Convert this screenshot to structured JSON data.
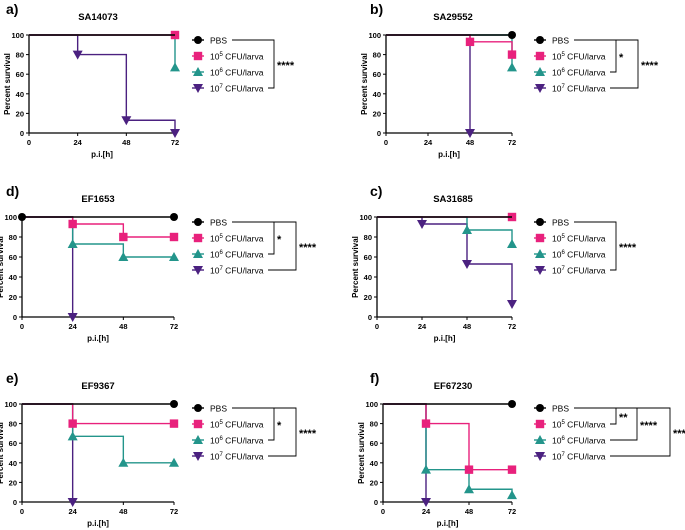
{
  "legend_labels": {
    "pbs": "PBS",
    "d5_base": "10",
    "d5_exp": "5",
    "d6_base": "10",
    "d6_exp": "6",
    "d7_base": "10",
    "d7_exp": "7",
    "unit": " CFU/larva"
  },
  "colors": {
    "PBS": "#000000",
    "1e5": "#e8217c",
    "1e6": "#23958b",
    "1e7": "#4b2180",
    "bracket": "#000000"
  },
  "markers": {
    "PBS": "circle",
    "1e5": "square",
    "1e6": "triangle-up",
    "1e7": "triangle-down"
  },
  "chart_data": [
    {
      "type": "line",
      "panel_label": "a)",
      "title": "SA14073",
      "xlabel": "p.i.[h]",
      "ylabel": "Percent survival",
      "xlim": [
        0,
        72
      ],
      "ylim": [
        0,
        100
      ],
      "xticks": [
        0,
        24,
        48,
        72
      ],
      "yticks": [
        0,
        20,
        40,
        60,
        80,
        100
      ],
      "series": [
        {
          "key": "1e7",
          "name": "10^7 CFU/larva",
          "steps": [
            [
              0,
              100
            ],
            [
              24,
              80
            ],
            [
              48,
              13
            ],
            [
              72,
              0
            ]
          ],
          "markers": [
            [
              24,
              80
            ],
            [
              48,
              13
            ],
            [
              72,
              0
            ]
          ]
        },
        {
          "key": "1e6",
          "name": "10^6 CFU/larva",
          "steps": [
            [
              0,
              100
            ],
            [
              72,
              67
            ]
          ],
          "markers": [
            [
              72,
              67
            ]
          ]
        },
        {
          "key": "1e5",
          "name": "10^5 CFU/larva",
          "steps": [
            [
              0,
              100
            ],
            [
              72,
              100
            ]
          ],
          "markers": [
            [
              72,
              100
            ]
          ]
        },
        {
          "key": "PBS",
          "name": "PBS",
          "steps": [
            [
              0,
              100
            ],
            [
              72,
              100
            ]
          ],
          "markers": []
        }
      ],
      "significance": [
        {
          "label": "****",
          "from": "PBS",
          "to": "1e7"
        }
      ]
    },
    {
      "type": "line",
      "panel_label": "b)",
      "title": "SA29552",
      "xlabel": "p.i.[h]",
      "ylabel": "Percent survival",
      "xlim": [
        0,
        72
      ],
      "ylim": [
        0,
        100
      ],
      "xticks": [
        0,
        24,
        48,
        72
      ],
      "yticks": [
        0,
        20,
        40,
        60,
        80,
        100
      ],
      "series": [
        {
          "key": "1e7",
          "name": "10^7 CFU/larva",
          "steps": [
            [
              0,
              100
            ],
            [
              48,
              0
            ]
          ],
          "markers": [
            [
              48,
              0
            ]
          ]
        },
        {
          "key": "1e6",
          "name": "10^6 CFU/larva",
          "steps": [
            [
              0,
              100
            ],
            [
              72,
              67
            ]
          ],
          "markers": [
            [
              72,
              67
            ]
          ]
        },
        {
          "key": "1e5",
          "name": "10^5 CFU/larva",
          "steps": [
            [
              0,
              100
            ],
            [
              48,
              93
            ],
            [
              72,
              80
            ]
          ],
          "markers": [
            [
              48,
              93
            ],
            [
              72,
              80
            ]
          ]
        },
        {
          "key": "PBS",
          "name": "PBS",
          "steps": [
            [
              0,
              100
            ],
            [
              72,
              100
            ]
          ],
          "markers": [
            [
              72,
              100
            ]
          ]
        }
      ],
      "significance": [
        {
          "label": "*",
          "from": "PBS",
          "to": "1e6"
        },
        {
          "label": "****",
          "from": "PBS",
          "to": "1e7"
        }
      ]
    },
    {
      "type": "line",
      "panel_label": "d)",
      "title": "EF1653",
      "xlabel": "p.i.[h]",
      "ylabel": "Percent survival",
      "xlim": [
        0,
        72
      ],
      "ylim": [
        0,
        100
      ],
      "xticks": [
        0,
        24,
        48,
        72
      ],
      "yticks": [
        0,
        20,
        40,
        60,
        80,
        100
      ],
      "series": [
        {
          "key": "1e7",
          "name": "10^7 CFU/larva",
          "steps": [
            [
              0,
              100
            ],
            [
              24,
              0
            ]
          ],
          "markers": [
            [
              24,
              0
            ]
          ]
        },
        {
          "key": "1e6",
          "name": "10^6 CFU/larva",
          "steps": [
            [
              0,
              100
            ],
            [
              24,
              73
            ],
            [
              48,
              60
            ],
            [
              72,
              60
            ]
          ],
          "markers": [
            [
              24,
              73
            ],
            [
              48,
              60
            ],
            [
              72,
              60
            ]
          ]
        },
        {
          "key": "1e5",
          "name": "10^5 CFU/larva",
          "steps": [
            [
              0,
              100
            ],
            [
              24,
              93
            ],
            [
              48,
              80
            ],
            [
              72,
              80
            ]
          ],
          "markers": [
            [
              24,
              93
            ],
            [
              48,
              80
            ],
            [
              72,
              80
            ]
          ]
        },
        {
          "key": "PBS",
          "name": "PBS",
          "steps": [
            [
              0,
              100
            ],
            [
              72,
              100
            ]
          ],
          "markers": [
            [
              0,
              100
            ],
            [
              72,
              100
            ]
          ]
        }
      ],
      "significance": [
        {
          "label": "*",
          "from": "PBS",
          "to": "1e6"
        },
        {
          "label": "****",
          "from": "PBS",
          "to": "1e7"
        }
      ]
    },
    {
      "type": "line",
      "panel_label": "c)",
      "title": "SA31685",
      "xlabel": "p.i.[h]",
      "ylabel": "Percent survival",
      "xlim": [
        0,
        72
      ],
      "ylim": [
        0,
        100
      ],
      "xticks": [
        0,
        24,
        48,
        72
      ],
      "yticks": [
        0,
        20,
        40,
        60,
        80,
        100
      ],
      "series": [
        {
          "key": "1e7",
          "name": "10^7 CFU/larva",
          "steps": [
            [
              0,
              100
            ],
            [
              24,
              93
            ],
            [
              48,
              53
            ],
            [
              72,
              13
            ]
          ],
          "markers": [
            [
              24,
              93
            ],
            [
              48,
              53
            ],
            [
              72,
              13
            ]
          ]
        },
        {
          "key": "1e6",
          "name": "10^6 CFU/larva",
          "steps": [
            [
              0,
              100
            ],
            [
              48,
              87
            ],
            [
              72,
              73
            ]
          ],
          "markers": [
            [
              48,
              87
            ],
            [
              72,
              73
            ]
          ]
        },
        {
          "key": "1e5",
          "name": "10^5 CFU/larva",
          "steps": [
            [
              0,
              100
            ],
            [
              72,
              100
            ]
          ],
          "markers": [
            [
              72,
              100
            ]
          ]
        },
        {
          "key": "PBS",
          "name": "PBS",
          "steps": [
            [
              0,
              100
            ],
            [
              72,
              100
            ]
          ],
          "markers": []
        }
      ],
      "significance": [
        {
          "label": "****",
          "from": "PBS",
          "to": "1e7"
        }
      ]
    },
    {
      "type": "line",
      "panel_label": "e)",
      "title": "EF9367",
      "xlabel": "p.i.[h]",
      "ylabel": "Percent survival",
      "xlim": [
        0,
        72
      ],
      "ylim": [
        0,
        100
      ],
      "xticks": [
        0,
        24,
        48,
        72
      ],
      "yticks": [
        0,
        20,
        40,
        60,
        80,
        100
      ],
      "series": [
        {
          "key": "1e7",
          "name": "10^7 CFU/larva",
          "steps": [
            [
              0,
              100
            ],
            [
              24,
              0
            ]
          ],
          "markers": [
            [
              24,
              0
            ]
          ]
        },
        {
          "key": "1e6",
          "name": "10^6 CFU/larva",
          "steps": [
            [
              0,
              100
            ],
            [
              24,
              67
            ],
            [
              48,
              40
            ],
            [
              72,
              40
            ]
          ],
          "markers": [
            [
              24,
              67
            ],
            [
              48,
              40
            ],
            [
              72,
              40
            ]
          ]
        },
        {
          "key": "1e5",
          "name": "10^5 CFU/larva",
          "steps": [
            [
              0,
              100
            ],
            [
              24,
              80
            ],
            [
              72,
              80
            ]
          ],
          "markers": [
            [
              24,
              80
            ],
            [
              72,
              80
            ]
          ]
        },
        {
          "key": "PBS",
          "name": "PBS",
          "steps": [
            [
              0,
              100
            ],
            [
              72,
              100
            ]
          ],
          "markers": [
            [
              72,
              100
            ]
          ]
        }
      ],
      "significance": [
        {
          "label": "*",
          "from": "PBS",
          "to": "1e6"
        },
        {
          "label": "****",
          "from": "PBS",
          "to": "1e7"
        }
      ]
    },
    {
      "type": "line",
      "panel_label": "f)",
      "title": "EF67230",
      "xlabel": "p.i.[h]",
      "ylabel": "Percent survival",
      "xlim": [
        0,
        72
      ],
      "ylim": [
        0,
        100
      ],
      "xticks": [
        0,
        24,
        48,
        72
      ],
      "yticks": [
        0,
        20,
        40,
        60,
        80,
        100
      ],
      "series": [
        {
          "key": "1e7",
          "name": "10^7 CFU/larva",
          "steps": [
            [
              0,
              100
            ],
            [
              24,
              0
            ]
          ],
          "markers": [
            [
              24,
              0
            ]
          ]
        },
        {
          "key": "1e6",
          "name": "10^6 CFU/larva",
          "steps": [
            [
              0,
              100
            ],
            [
              24,
              33
            ],
            [
              48,
              13
            ],
            [
              72,
              7
            ]
          ],
          "markers": [
            [
              24,
              33
            ],
            [
              48,
              13
            ],
            [
              72,
              7
            ]
          ]
        },
        {
          "key": "1e5",
          "name": "10^5 CFU/larva",
          "steps": [
            [
              0,
              100
            ],
            [
              24,
              80
            ],
            [
              48,
              33
            ],
            [
              72,
              33
            ]
          ],
          "markers": [
            [
              24,
              80
            ],
            [
              48,
              33
            ],
            [
              72,
              33
            ]
          ]
        },
        {
          "key": "PBS",
          "name": "PBS",
          "steps": [
            [
              0,
              100
            ],
            [
              72,
              100
            ]
          ],
          "markers": [
            [
              72,
              100
            ]
          ]
        }
      ],
      "significance": [
        {
          "label": "**",
          "from": "PBS",
          "to": "1e5"
        },
        {
          "label": "****",
          "from": "PBS",
          "to": "1e6"
        },
        {
          "label": "****",
          "from": "PBS",
          "to": "1e7"
        }
      ]
    }
  ]
}
